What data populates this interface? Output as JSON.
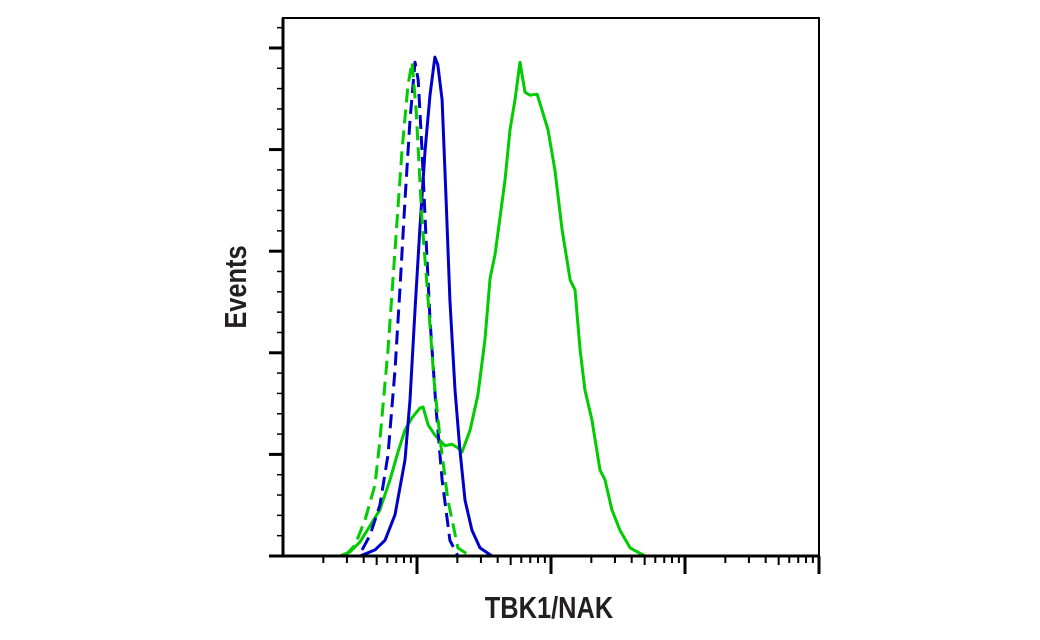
{
  "chart_data": {
    "type": "line",
    "title": "",
    "xlabel": "TBK1/NAK",
    "ylabel": "Events",
    "x_scale": "log",
    "xlim": [
      1,
      10000
    ],
    "ylim": [
      0,
      105.9
    ],
    "grid": false,
    "legend": "none",
    "series": [
      {
        "color": "#00cc00",
        "dash": false,
        "x": [
          1.13,
          2.66,
          3.16,
          3.76,
          5.29,
          6.29,
          7.21,
          8.13,
          9.18,
          10.5,
          11.1,
          12.1,
          13.6,
          16.2,
          18.2,
          20.2,
          21.7,
          24.9,
          28.5,
          32.1,
          35.1,
          38.2,
          45.4,
          49.4,
          53.9,
          58.7,
          64.0,
          69.7,
          78.7,
          85.7,
          95.0,
          107,
          121,
          139,
          151,
          165,
          179,
          202,
          232,
          253,
          285,
          327,
          389,
          503,
          10000
        ],
        "y": [
          0,
          0,
          0.8,
          2.8,
          9.1,
          15.0,
          20.5,
          24.8,
          27.2,
          29.1,
          29.3,
          25.8,
          23.8,
          21.7,
          22.0,
          21.3,
          20.5,
          24.8,
          31.7,
          42.5,
          54.7,
          59.3,
          74.0,
          83.9,
          89.8,
          97.2,
          91.3,
          90.7,
          90.9,
          87.8,
          83.9,
          76.0,
          64.2,
          54.3,
          52.4,
          40.6,
          32.7,
          26.8,
          16.9,
          15.0,
          9.1,
          5.1,
          1.6,
          0,
          0
        ]
      },
      {
        "color": "#0000cc",
        "dash": false,
        "x": [
          3.76,
          4.86,
          5.77,
          6.85,
          8.13,
          8.87,
          9.66,
          10.5,
          11.5,
          12.5,
          13.6,
          14.3,
          15.4,
          16.5,
          17.6,
          19.2,
          20.9,
          22.8,
          25.7,
          29.5,
          36.3
        ],
        "y": [
          0,
          1.2,
          3.1,
          8.1,
          18.9,
          30.7,
          48.4,
          64.2,
          79.9,
          90.7,
          98.2,
          96.7,
          89.8,
          70.1,
          50.4,
          32.7,
          20.9,
          11.0,
          5.1,
          1.6,
          0
        ]
      },
      {
        "color": "#0000cc",
        "dash": true,
        "x": [
          3.89,
          4.46,
          5.29,
          6.08,
          6.85,
          7.46,
          8.13,
          8.87,
          9.66,
          10.2,
          10.9,
          11.7,
          12.5,
          13.9,
          15.4,
          17.6,
          20.2
        ],
        "y": [
          1.2,
          4.1,
          10.0,
          19.9,
          36.6,
          52.4,
          70.1,
          85.8,
          97.2,
          93.7,
          79.9,
          62.2,
          46.5,
          28.7,
          15.0,
          3.1,
          0
        ]
      },
      {
        "color": "#00cc00",
        "dash": true,
        "x": [
          2.9,
          3.45,
          4.09,
          4.86,
          5.29,
          6.08,
          6.85,
          7.73,
          8.57,
          9.18,
          9.84,
          10.9,
          12.1,
          13.4,
          14.9,
          17.0,
          20.2,
          24.9
        ],
        "y": [
          0,
          2.2,
          7.1,
          14.0,
          22.8,
          40.6,
          60.2,
          79.9,
          92.7,
          97.2,
          87.8,
          66.1,
          50.4,
          34.6,
          22.8,
          11.0,
          1.6,
          0
        ]
      }
    ]
  }
}
